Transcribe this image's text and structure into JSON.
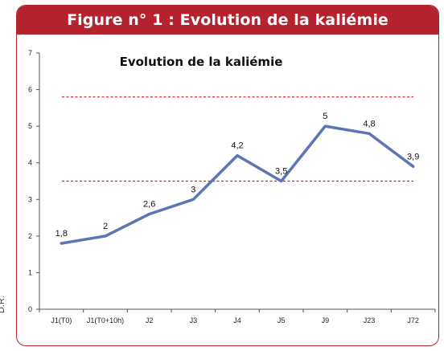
{
  "figure": {
    "banner_title": "Figure n° 1 : Evolution de la kaliémie",
    "credit": "D.R."
  },
  "colors": {
    "banner": "#b5242e",
    "series": "#5b75b5",
    "reference_lines": "#cc2222"
  },
  "chart_data": {
    "type": "line",
    "title": "Evolution de la kaliémie",
    "xlabel": "",
    "ylabel": "",
    "categories": [
      "J1(T0)",
      "J1(T0+10h)",
      "J2",
      "J3",
      "J4",
      "J5",
      "J9",
      "J23",
      "J72"
    ],
    "series": [
      {
        "values": [
          1.8,
          2,
          2.6,
          3,
          4.2,
          3.5,
          5,
          4.8,
          3.9
        ],
        "labels": [
          "1,8",
          "2",
          "2,6",
          "3",
          "4,2",
          "3,5",
          "5",
          "4,8",
          "3,9"
        ]
      }
    ],
    "reference_lines": [
      3.5,
      5.8
    ],
    "ylim": [
      0,
      7
    ],
    "yticks": [
      0,
      1,
      2,
      3,
      4,
      5,
      6,
      7
    ],
    "grid": false,
    "legend": "none"
  }
}
